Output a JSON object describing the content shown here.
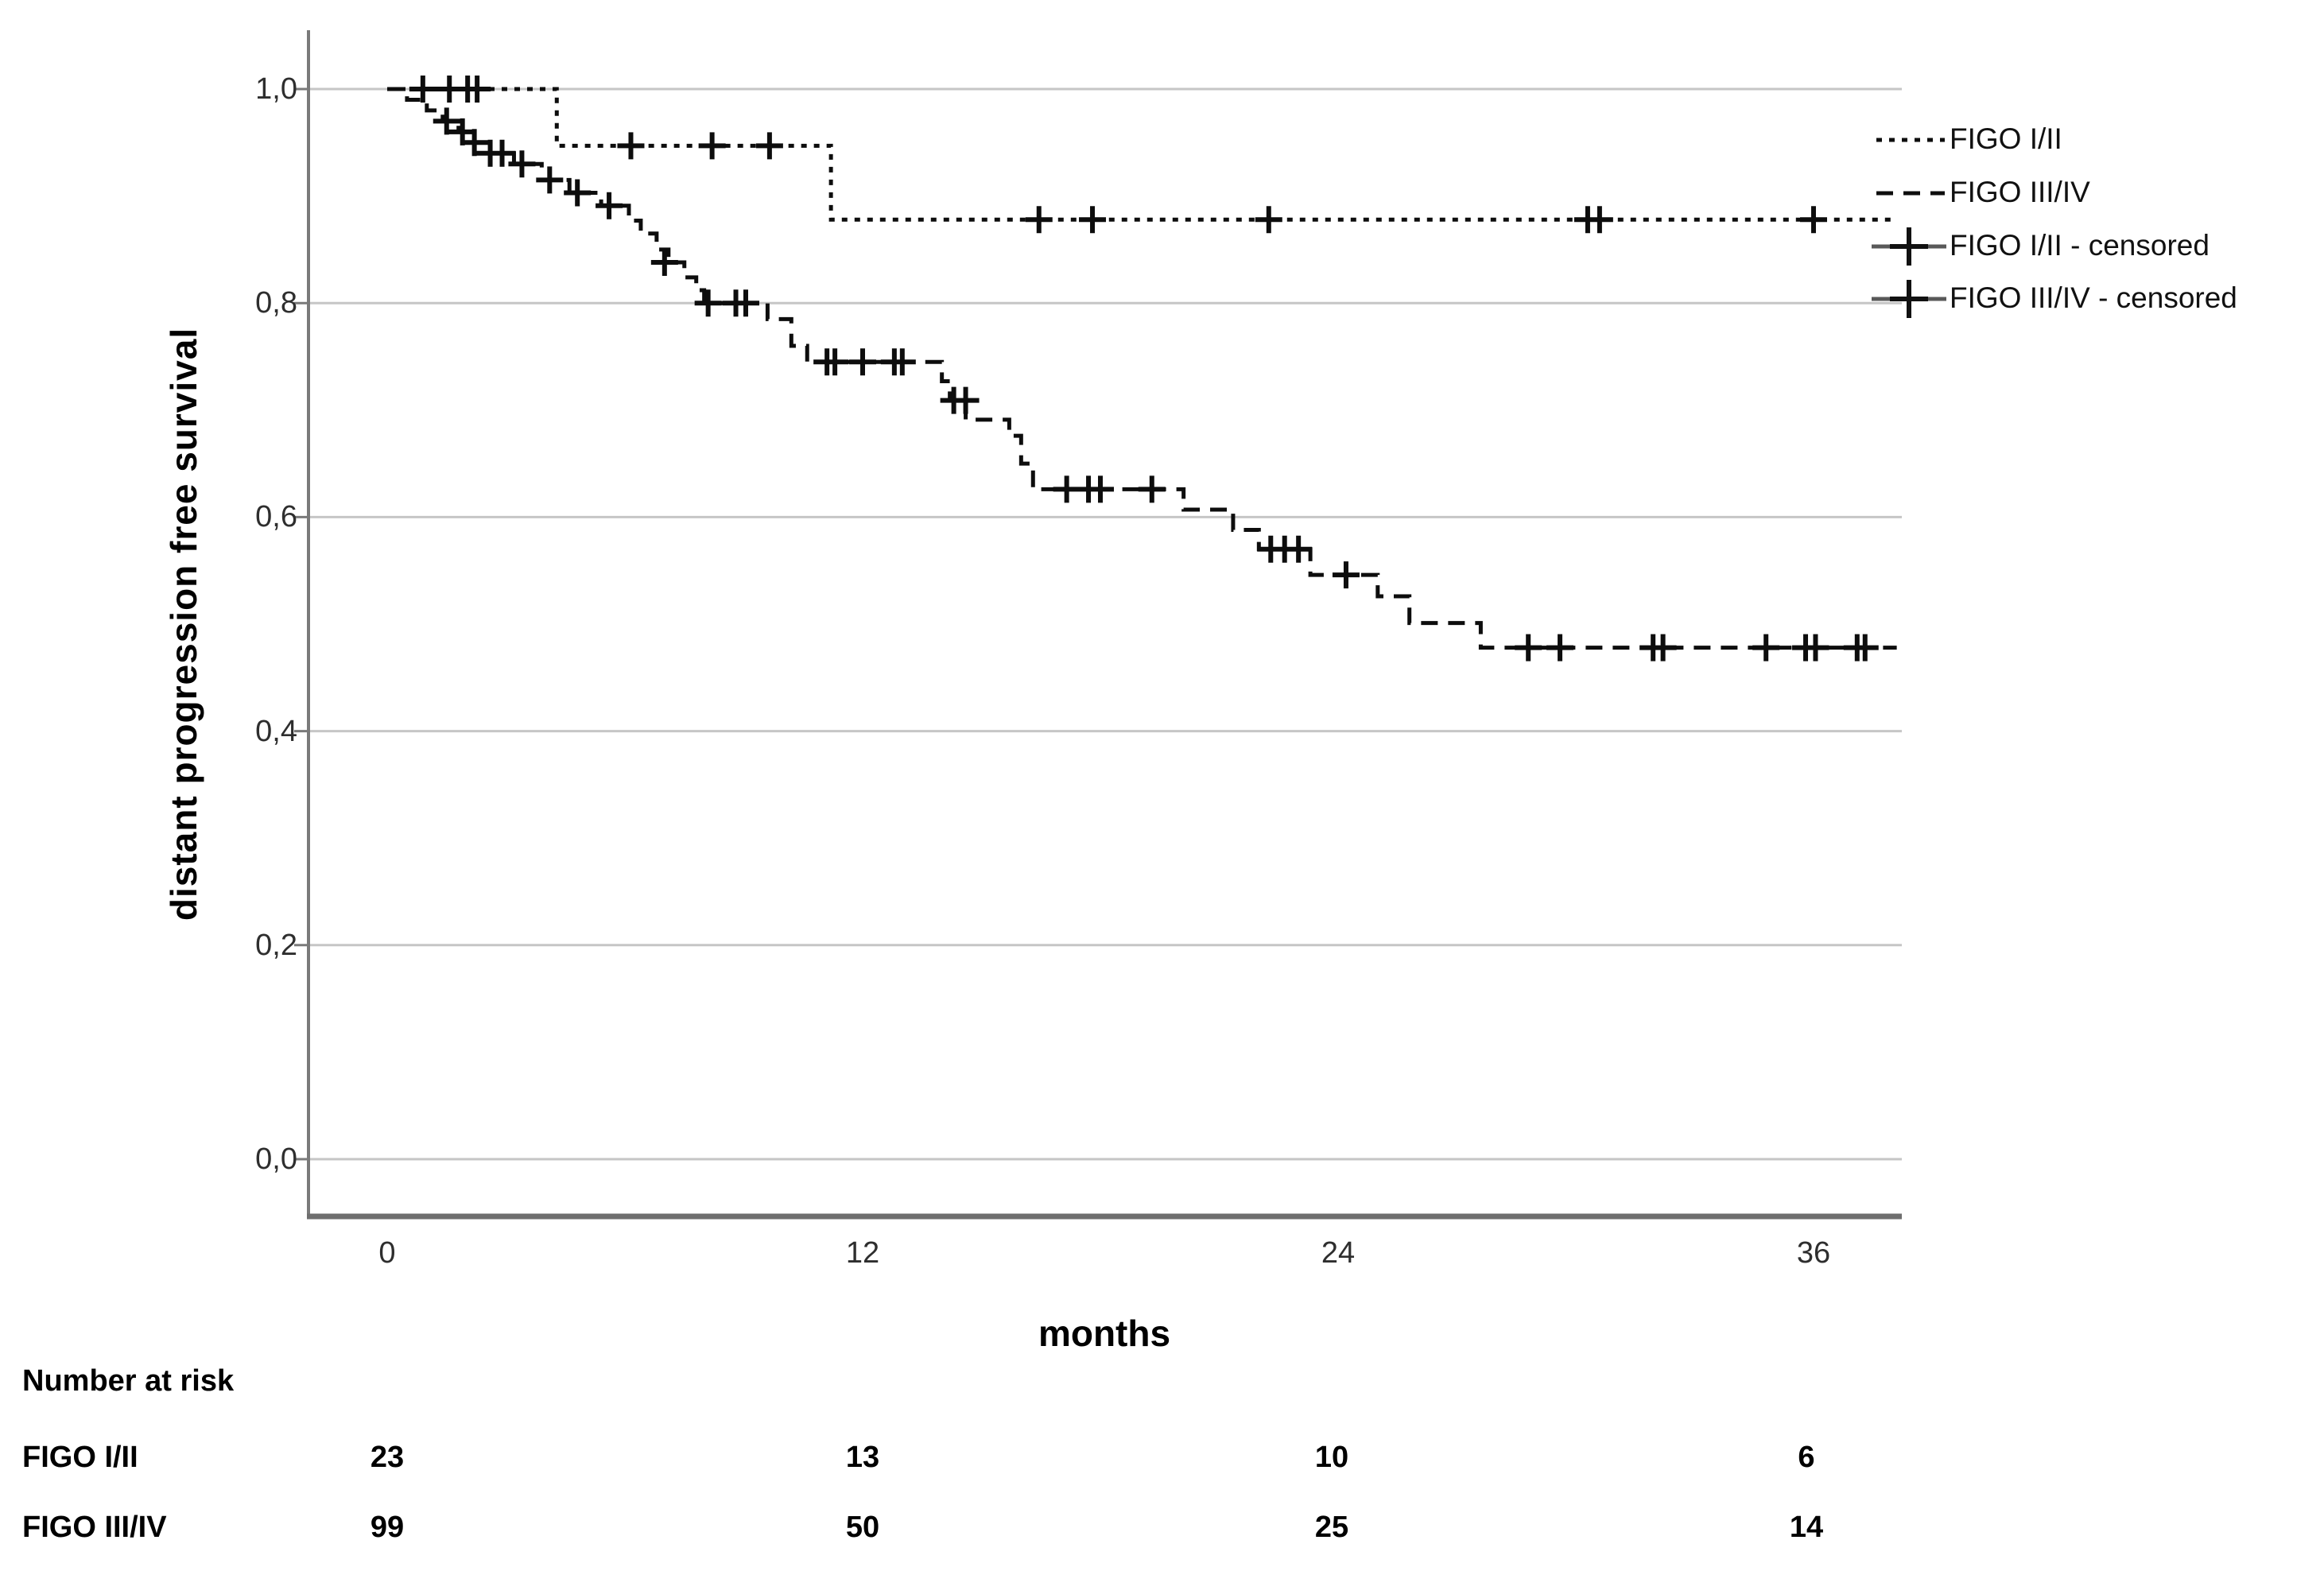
{
  "chart": {
    "y_axis_title": "distant progression free survival",
    "x_axis_title": "months",
    "y_ticks": [
      {
        "value": 1.0,
        "label": "1,0"
      },
      {
        "value": 0.8,
        "label": "0,8"
      },
      {
        "value": 0.6,
        "label": "0,6"
      },
      {
        "value": 0.4,
        "label": "0,4"
      },
      {
        "value": 0.2,
        "label": "0,2"
      },
      {
        "value": 0.0,
        "label": "0,0"
      }
    ],
    "x_ticks": [
      {
        "value": 0,
        "label": "0"
      },
      {
        "value": 12,
        "label": "12"
      },
      {
        "value": 24,
        "label": "24"
      },
      {
        "value": 36,
        "label": "36"
      }
    ]
  },
  "legend": {
    "entries": [
      {
        "label": "FIGO I/II",
        "style": "dotted-line"
      },
      {
        "label": "FIGO III/IV",
        "style": "dashed-line"
      },
      {
        "label": "FIGO I/II - censored",
        "style": "plus-marker"
      },
      {
        "label": "FIGO III/IV - censored",
        "style": "plus-marker"
      }
    ]
  },
  "risk_table": {
    "title": "Number at risk",
    "time_points": [
      0,
      12,
      24,
      36
    ],
    "rows": [
      {
        "label": "FIGO I/II",
        "counts": [
          "23",
          "13",
          "10",
          "6"
        ]
      },
      {
        "label": "FIGO III/IV",
        "counts": [
          "99",
          "50",
          "25",
          "14"
        ]
      }
    ]
  },
  "chart_data": {
    "type": "line",
    "subtype": "kaplan-meier-step",
    "title": "",
    "xlabel": "months",
    "ylabel": "distant progression free survival",
    "xlim": [
      -2,
      38.3
    ],
    "ylim": [
      -0.055,
      1.055
    ],
    "x_tick_values": [
      0,
      12,
      24,
      36
    ],
    "y_tick_values": [
      0.0,
      0.2,
      0.4,
      0.6,
      0.8,
      1.0
    ],
    "grid": "horizontal",
    "legend_position": "right-top",
    "colors": {
      "curves": "#0d0d0d",
      "grid": "#c6c6c6",
      "axis": "#7a7a7a",
      "censor": "#0d0d0d"
    },
    "series": [
      {
        "name": "FIGO I/II",
        "dash": "dotted",
        "end_month": 38.1,
        "steps": [
          [
            0,
            1.0
          ],
          [
            4.28,
            0.947
          ],
          [
            11.2,
            0.878
          ]
        ],
        "censors": [
          [
            0.9,
            1.0
          ],
          [
            1.57,
            1.0
          ],
          [
            2.03,
            1.0
          ],
          [
            2.27,
            1.0
          ],
          [
            6.15,
            0.947
          ],
          [
            8.2,
            0.947
          ],
          [
            9.65,
            0.947
          ],
          [
            16.45,
            0.878
          ],
          [
            17.8,
            0.878
          ],
          [
            22.25,
            0.878
          ],
          [
            30.3,
            0.878
          ],
          [
            30.6,
            0.878
          ],
          [
            36.0,
            0.878
          ]
        ]
      },
      {
        "name": "FIGO III/IV",
        "dash": "dashed",
        "end_month": 38.1,
        "steps": [
          [
            0,
            1.0
          ],
          [
            0.5,
            0.99
          ],
          [
            1.0,
            0.98
          ],
          [
            1.4,
            0.97
          ],
          [
            1.8,
            0.96
          ],
          [
            2.1,
            0.95
          ],
          [
            2.5,
            0.94
          ],
          [
            3.2,
            0.93
          ],
          [
            3.9,
            0.915
          ],
          [
            4.6,
            0.903
          ],
          [
            5.4,
            0.891
          ],
          [
            6.1,
            0.877
          ],
          [
            6.4,
            0.865
          ],
          [
            6.8,
            0.85
          ],
          [
            7.1,
            0.838
          ],
          [
            7.5,
            0.824
          ],
          [
            7.8,
            0.812
          ],
          [
            8.0,
            0.8
          ],
          [
            9.6,
            0.785
          ],
          [
            10.2,
            0.76
          ],
          [
            10.6,
            0.745
          ],
          [
            14.0,
            0.727
          ],
          [
            14.2,
            0.709
          ],
          [
            14.6,
            0.691
          ],
          [
            15.7,
            0.676
          ],
          [
            16.0,
            0.65
          ],
          [
            16.3,
            0.626
          ],
          [
            20.1,
            0.607
          ],
          [
            21.35,
            0.588
          ],
          [
            22.0,
            0.57
          ],
          [
            23.3,
            0.546
          ],
          [
            25.0,
            0.526
          ],
          [
            25.8,
            0.501
          ],
          [
            27.6,
            0.478
          ]
        ],
        "censors": [
          [
            1.5,
            0.97
          ],
          [
            1.9,
            0.96
          ],
          [
            2.2,
            0.95
          ],
          [
            2.6,
            0.94
          ],
          [
            2.9,
            0.94
          ],
          [
            3.4,
            0.93
          ],
          [
            4.1,
            0.915
          ],
          [
            4.8,
            0.903
          ],
          [
            5.6,
            0.891
          ],
          [
            7.0,
            0.838
          ],
          [
            8.1,
            0.8
          ],
          [
            8.8,
            0.8
          ],
          [
            9.05,
            0.8
          ],
          [
            11.1,
            0.745
          ],
          [
            11.3,
            0.745
          ],
          [
            12.0,
            0.745
          ],
          [
            12.8,
            0.745
          ],
          [
            13.0,
            0.745
          ],
          [
            14.3,
            0.709
          ],
          [
            14.6,
            0.709
          ],
          [
            17.15,
            0.626
          ],
          [
            17.7,
            0.626
          ],
          [
            18.0,
            0.626
          ],
          [
            19.3,
            0.626
          ],
          [
            22.3,
            0.57
          ],
          [
            22.65,
            0.57
          ],
          [
            23.0,
            0.57
          ],
          [
            24.2,
            0.546
          ],
          [
            28.8,
            0.478
          ],
          [
            29.6,
            0.478
          ],
          [
            31.95,
            0.478
          ],
          [
            32.2,
            0.478
          ],
          [
            34.8,
            0.478
          ],
          [
            35.8,
            0.478
          ],
          [
            36.05,
            0.478
          ],
          [
            37.1,
            0.478
          ],
          [
            37.3,
            0.478
          ]
        ]
      }
    ],
    "risk_table": {
      "title": "Number at risk",
      "time_points": [
        0,
        12,
        24,
        36
      ],
      "rows": [
        {
          "label": "FIGO I/II",
          "counts": [
            23,
            13,
            10,
            6
          ]
        },
        {
          "label": "FIGO III/IV",
          "counts": [
            99,
            50,
            25,
            14
          ]
        }
      ]
    }
  }
}
